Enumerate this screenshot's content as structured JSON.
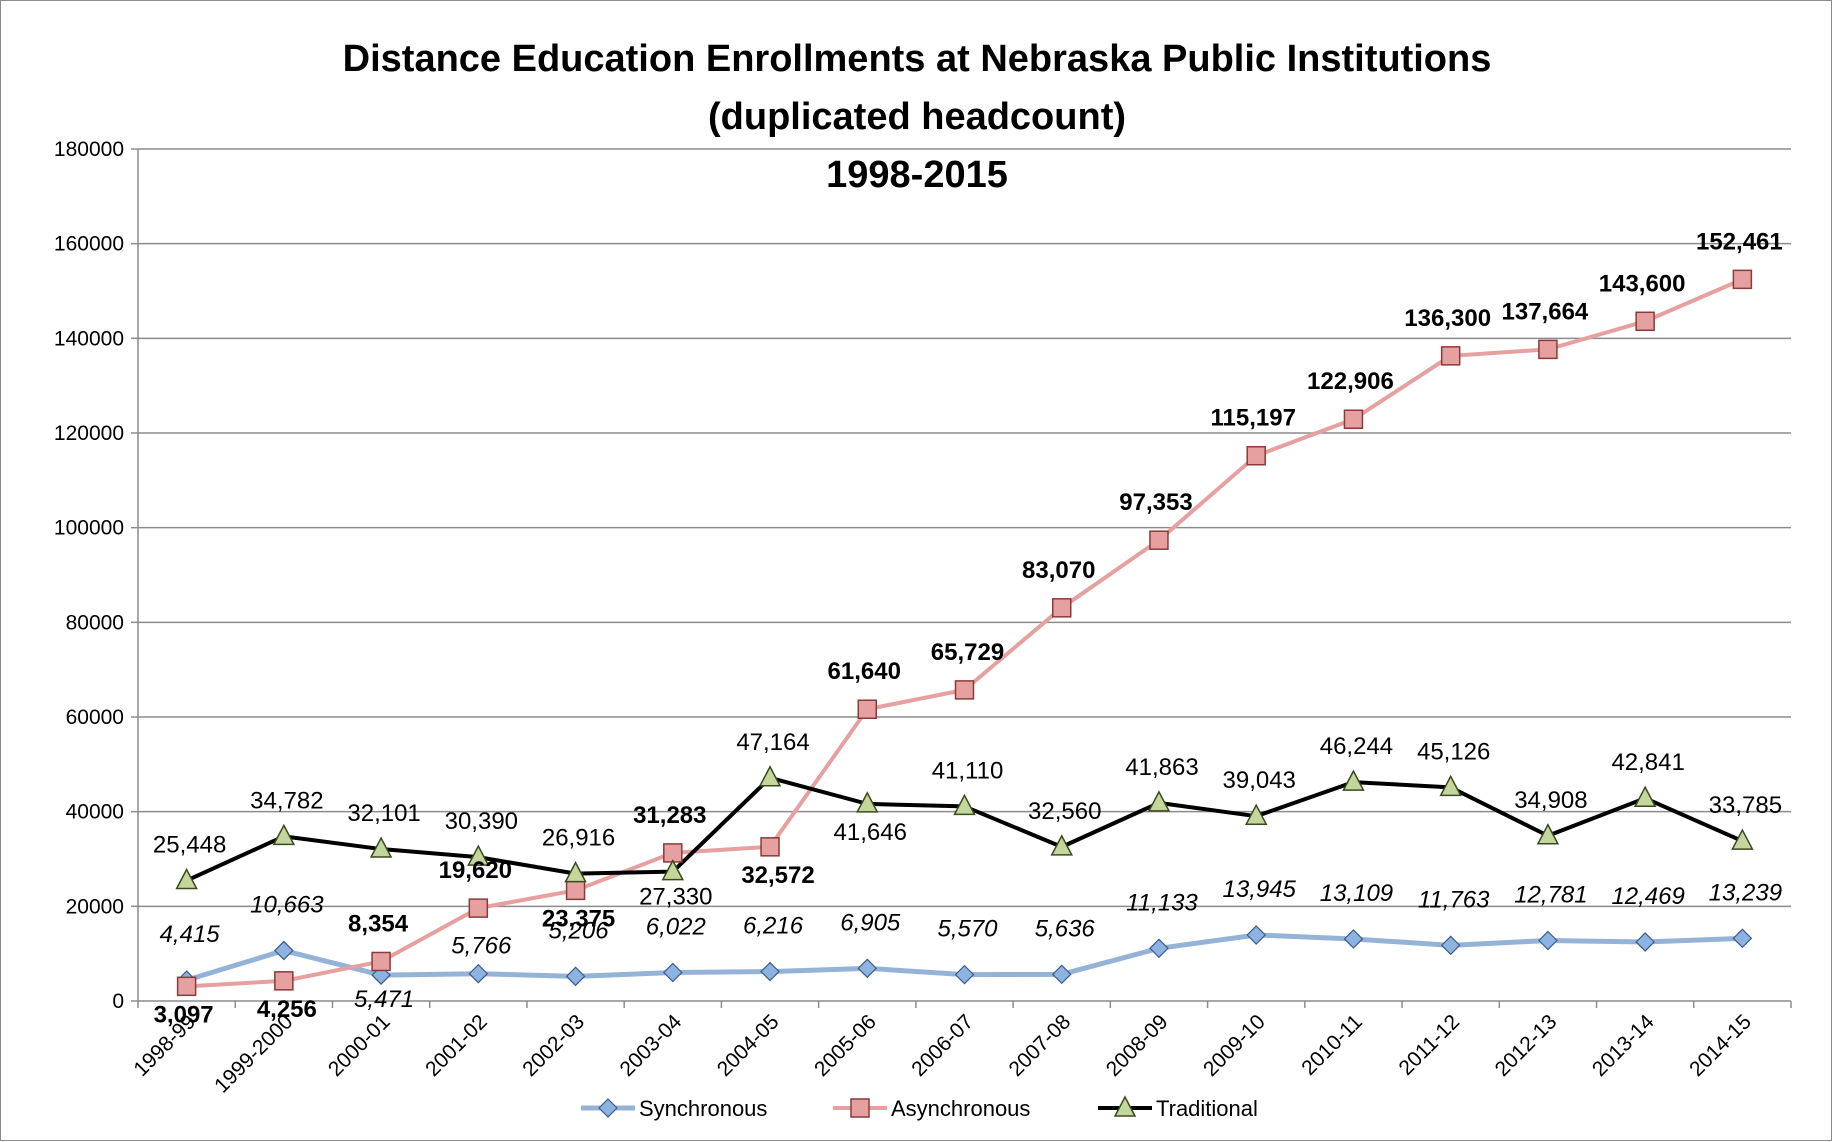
{
  "chart_data": {
    "type": "line",
    "title": [
      "Distance Education Enrollments at Nebraska Public Institutions",
      "(duplicated headcount)",
      "1998-2015"
    ],
    "categories": [
      "1998-99",
      "1999-2000",
      "2000-01",
      "2001-02",
      "2002-03",
      "2003-04",
      "2004-05",
      "2005-06",
      "2006-07",
      "2007-08",
      "2008-09",
      "2009-10",
      "2010-11",
      "2011-12",
      "2012-13",
      "2013-14",
      "2014-15"
    ],
    "ylim": [
      0,
      180000
    ],
    "yticks": [
      "0",
      "20000",
      "40000",
      "60000",
      "80000",
      "100000",
      "120000",
      "140000",
      "160000",
      "180000"
    ],
    "grid": "horizontal",
    "legend_position": "bottom",
    "series": [
      {
        "name": "Synchronous",
        "color": "#95b3d7",
        "marker": "diamond",
        "marker_fill": "#8db3e2",
        "label_style": "italic",
        "values": [
          4415,
          10663,
          5471,
          5766,
          5206,
          6022,
          6216,
          6905,
          5570,
          5636,
          11133,
          13945,
          13109,
          11763,
          12781,
          12469,
          13239
        ],
        "labels": [
          "4,415",
          "10,663",
          "5,471",
          "5,766",
          "5,206",
          "6,022",
          "6,216",
          "6,905",
          "5,570",
          "5,636",
          "11,133",
          "13,945",
          "13,109",
          "11,763",
          "12,781",
          "12,469",
          "13,239"
        ]
      },
      {
        "name": "Asynchronous",
        "color": "#e6a0a0",
        "marker": "square",
        "marker_fill": "#e6a0a0",
        "label_style": "bold",
        "values": [
          3097,
          4256,
          8354,
          19620,
          23375,
          31283,
          32572,
          61640,
          65729,
          83070,
          97353,
          115197,
          122906,
          136300,
          137664,
          143600,
          152461
        ],
        "labels": [
          "3,097",
          "4,256",
          "8,354",
          "19,620",
          "23,375",
          "31,283",
          "32,572",
          "61,640",
          "65,729",
          "83,070",
          "97,353",
          "115,197",
          "122,906",
          "136,300",
          "137,664",
          "143,600",
          "152,461"
        ]
      },
      {
        "name": "Traditional",
        "color": "#000000",
        "marker": "triangle",
        "marker_fill": "#c3d69b",
        "label_style": "normal",
        "values": [
          25448,
          34782,
          32101,
          30390,
          26916,
          27330,
          47164,
          41646,
          41110,
          32560,
          41863,
          39043,
          46244,
          45126,
          34908,
          42841,
          33785
        ],
        "labels": [
          "25,448",
          "34,782",
          "32,101",
          "30,390",
          "26,916",
          "27,330",
          "47,164",
          "41,646",
          "41,110",
          "32,560",
          "41,863",
          "39,043",
          "46,244",
          "45,126",
          "34,908",
          "42,841",
          "33,785"
        ]
      }
    ]
  }
}
